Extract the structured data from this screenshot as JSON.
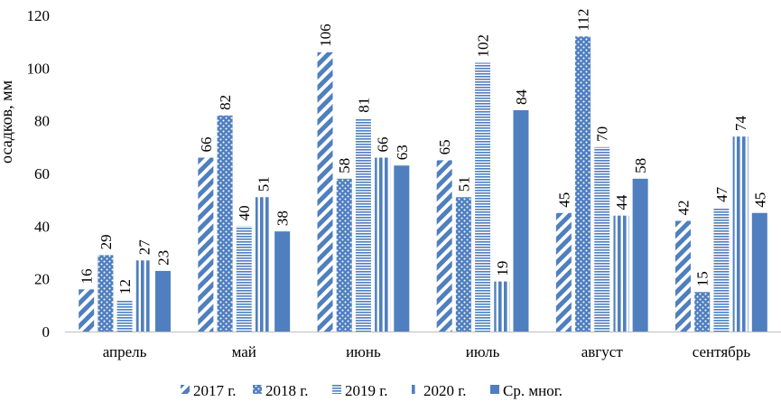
{
  "chart_data": {
    "type": "bar",
    "title": "",
    "xlabel": "",
    "ylabel": "осадков, мм",
    "ylim": [
      0,
      120
    ],
    "yticks": [
      0,
      20,
      40,
      60,
      80,
      100,
      120
    ],
    "grid": false,
    "legend_position": "bottom",
    "categories": [
      "апрель",
      "май",
      "июнь",
      "июль",
      "август",
      "сентябрь"
    ],
    "series": [
      {
        "name": "2017 г.",
        "values": [
          16,
          66,
          106,
          65,
          45,
          42
        ],
        "pattern": "diagonal"
      },
      {
        "name": "2018 г.",
        "values": [
          29,
          82,
          58,
          51,
          112,
          15
        ],
        "pattern": "dots"
      },
      {
        "name": "2019 г.",
        "values": [
          12,
          40,
          81,
          102,
          70,
          47
        ],
        "pattern": "horizontal"
      },
      {
        "name": "2020 г.",
        "values": [
          27,
          51,
          66,
          19,
          44,
          74
        ],
        "pattern": "vertical"
      },
      {
        "name": "Ср. мног.",
        "values": [
          23,
          38,
          63,
          84,
          58,
          45
        ],
        "pattern": "solid"
      }
    ],
    "colors": {
      "bar": "#4f7fbf",
      "axis": "#bfbfbf",
      "text": "#000000"
    }
  }
}
